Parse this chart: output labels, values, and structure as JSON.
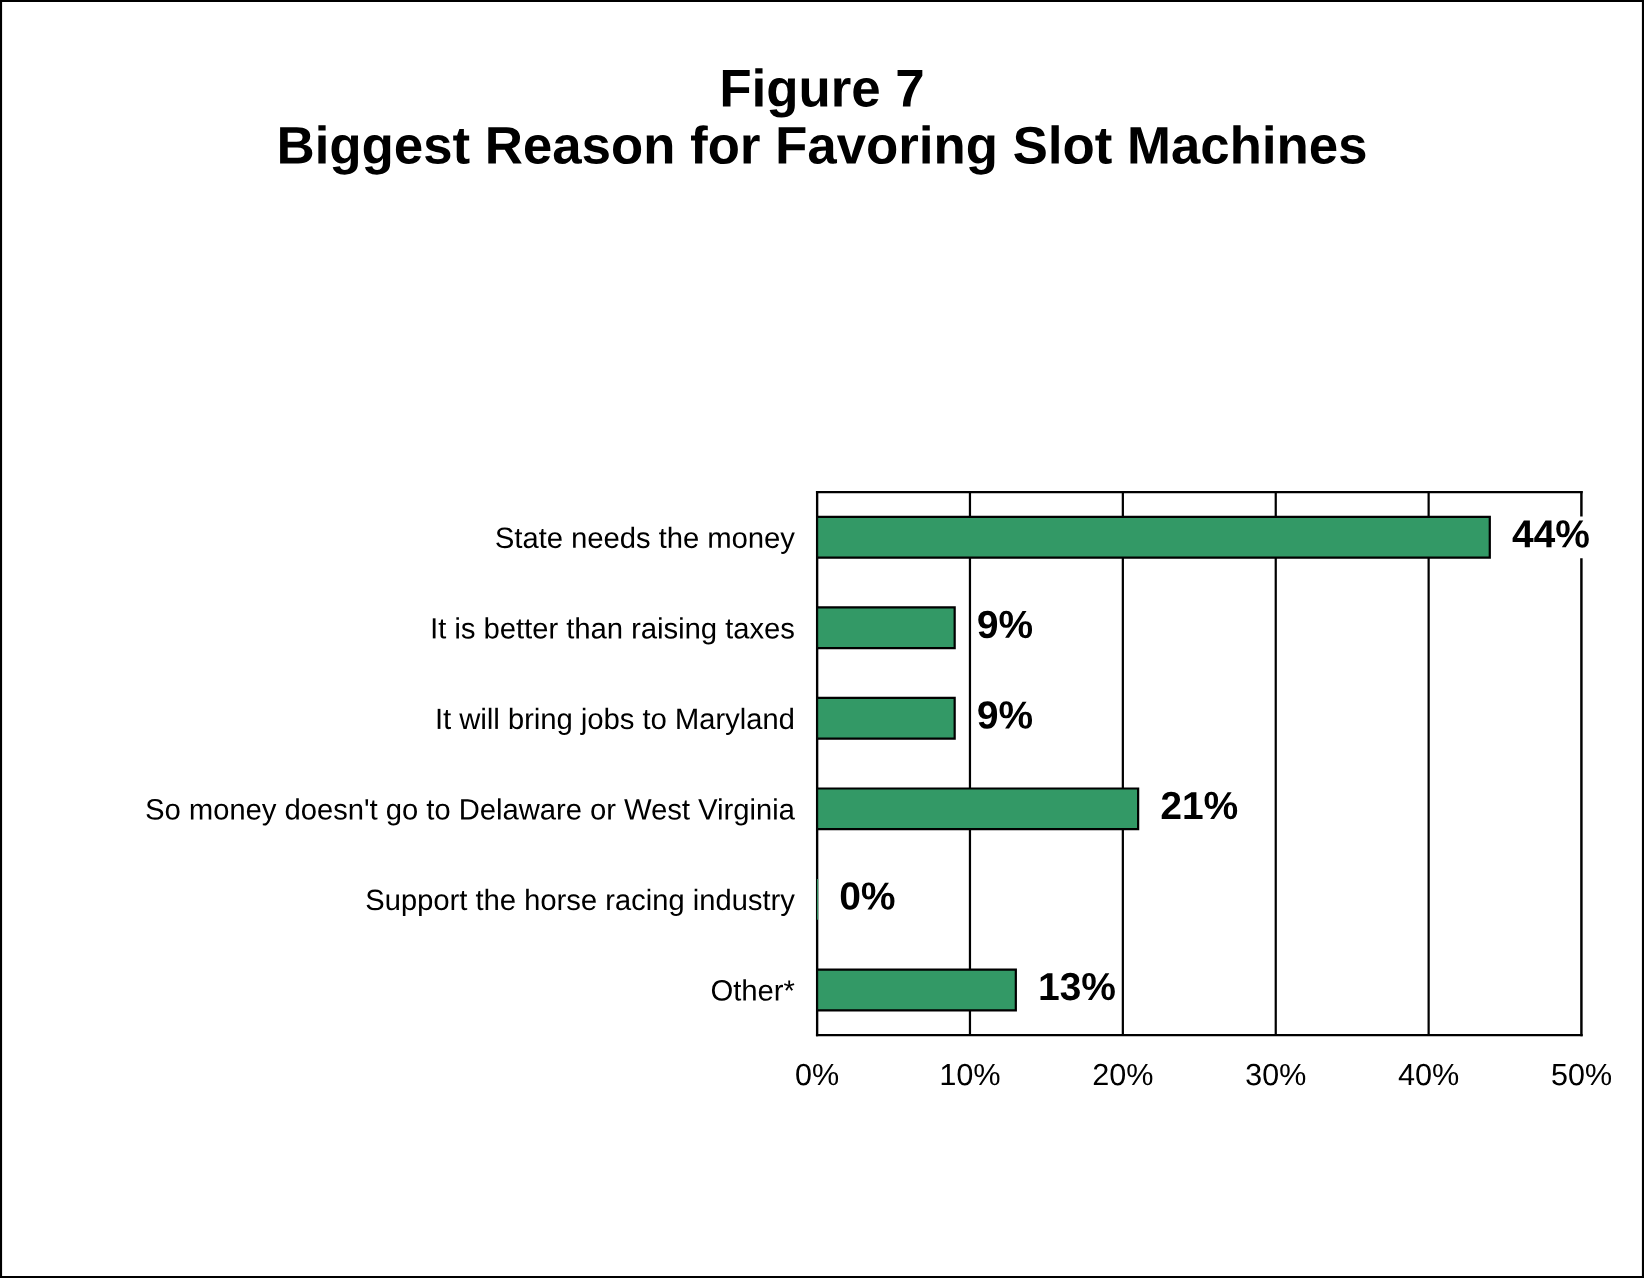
{
  "chart_data": {
    "type": "bar",
    "orientation": "horizontal",
    "title": "Figure 7\nBiggest Reason for Favoring Slot Machines",
    "categories": [
      "State needs the money",
      "It is better than raising taxes",
      "It will bring jobs to Maryland",
      "So money doesn't go to Delaware or West Virginia",
      "Support the horse racing industry",
      "Other*"
    ],
    "values": [
      44,
      9,
      9,
      21,
      0,
      13
    ],
    "value_labels": [
      "44%",
      "9%",
      "9%",
      "21%",
      "0%",
      "13%"
    ],
    "color": "#339966",
    "xlim": [
      0,
      50
    ],
    "xticks": [
      {
        "value": 0,
        "label": "0%"
      },
      {
        "value": 10,
        "label": "10%"
      },
      {
        "value": 20,
        "label": "20%"
      },
      {
        "value": 30,
        "label": "30%"
      },
      {
        "value": 40,
        "label": "40%"
      },
      {
        "value": 50,
        "label": "50%"
      }
    ],
    "grid": "x",
    "legend": false
  }
}
